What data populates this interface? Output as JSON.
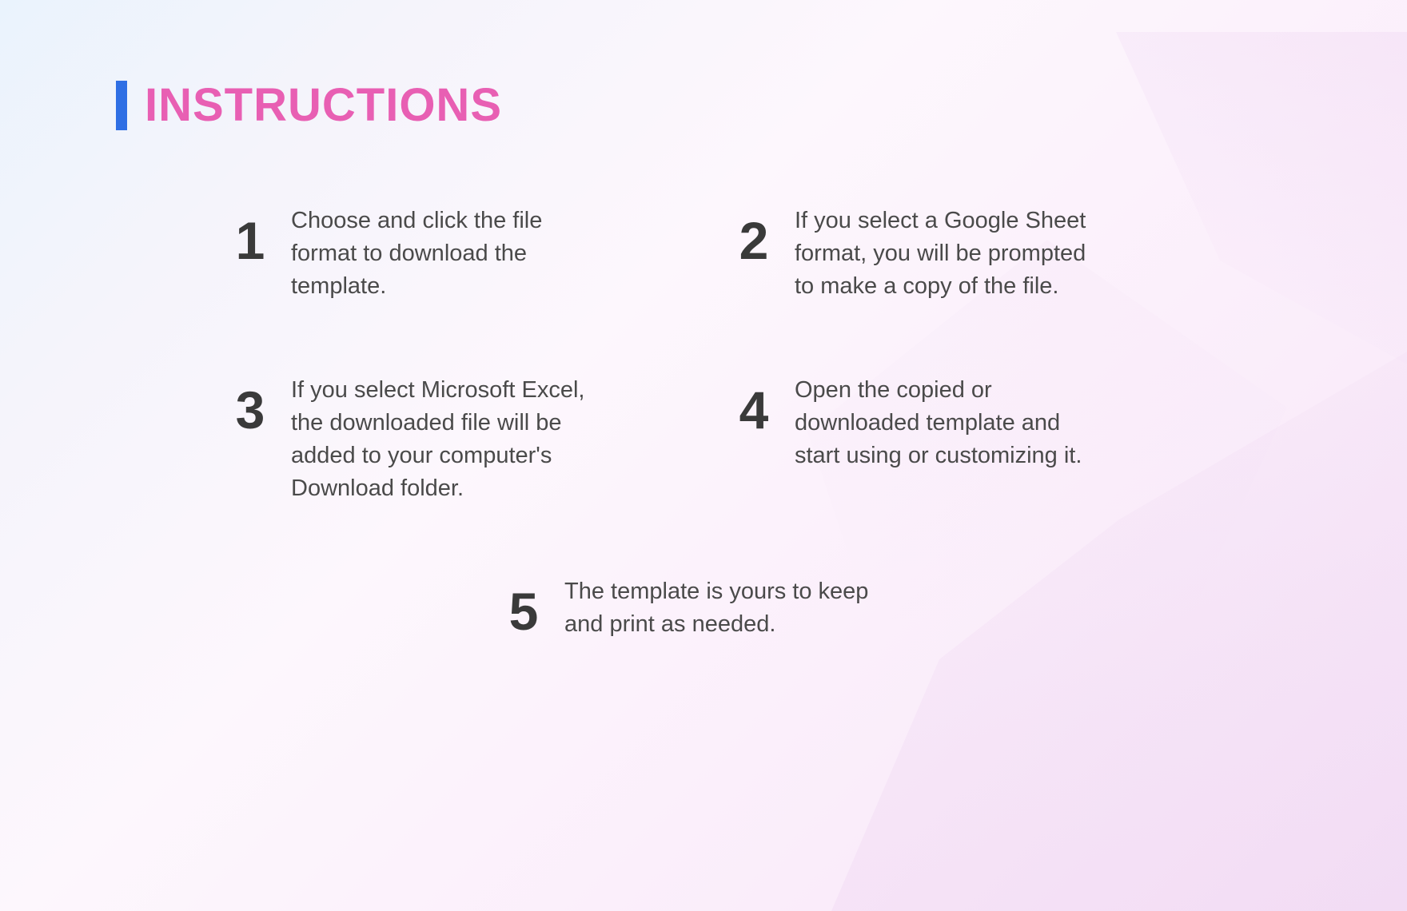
{
  "title": "INSTRUCTIONS",
  "colors": {
    "title_color": "#e85fb3",
    "accent_bar_color": "#2f6fe4",
    "number_color": "#3a3a3a",
    "text_color": "#4a4a4a",
    "bg_gradient_start": "#eaf3fd",
    "bg_gradient_end": "#f6e5f7"
  },
  "typography": {
    "title_fontsize": 58,
    "title_weight": 700,
    "number_fontsize": 66,
    "number_weight": 800,
    "body_fontsize": 29
  },
  "steps": [
    {
      "n": "1",
      "text": "Choose and click the file format to download the template."
    },
    {
      "n": "2",
      "text": "If you select a Google Sheet format, you will be prompted to make a copy of the file."
    },
    {
      "n": "3",
      "text": "If you select Microsoft Excel, the downloaded file will be added to your computer's Download  folder."
    },
    {
      "n": "4",
      "text": "Open the copied or downloaded template and start using or customizing it."
    },
    {
      "n": "5",
      "text": "The template is yours to keep and print as needed."
    }
  ]
}
